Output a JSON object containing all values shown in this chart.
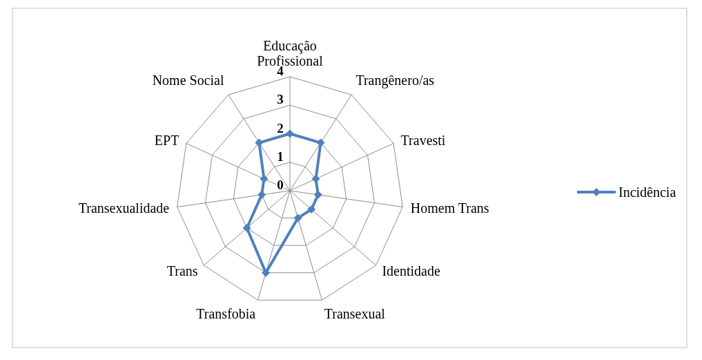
{
  "chart_data": {
    "type": "radar",
    "categories": [
      "Educação Profissional",
      "Trangênero/as",
      "Travesti",
      "Homem Trans",
      "Identidade",
      "Transexual",
      "Transfobia",
      "Trans",
      "Transexualidade",
      "EPT",
      "Nome Social"
    ],
    "series": [
      {
        "name": "Incidência",
        "color": "#4f81bd",
        "values": [
          2,
          2,
          1,
          1,
          1,
          1,
          3,
          2,
          1,
          1,
          2
        ]
      }
    ],
    "ylim": [
      0,
      4
    ],
    "yticks": [
      0,
      1,
      2,
      3,
      4
    ],
    "grid": true,
    "legend": "right",
    "marker": "diamond",
    "line_style": "solid"
  }
}
